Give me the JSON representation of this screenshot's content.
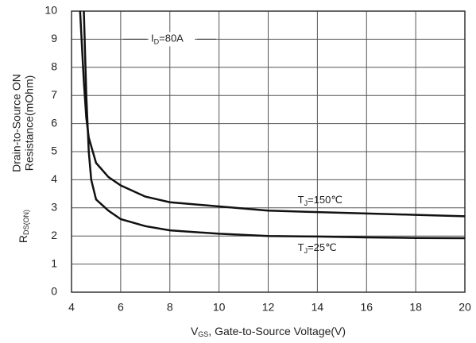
{
  "chart_data": {
    "type": "line",
    "xlabel": {
      "main": "V",
      "sub": "GS",
      "rest": ", Gate-to-Source Voltage(V)"
    },
    "ylabel": {
      "main": "R",
      "sub": "DS(ON)",
      "line1": "Drain-to-Source ON",
      "line2": "Resistance(mOhm)"
    },
    "annotation": {
      "main": "I",
      "sub": "D",
      "rest": "=80A"
    },
    "series": [
      {
        "name": {
          "main": "T",
          "sub": "J",
          "rest": "=150℃"
        },
        "color": "#111111",
        "x": [
          4.35,
          4.5,
          4.6,
          4.7,
          5,
          5.5,
          6,
          7,
          8,
          10,
          12,
          14,
          16,
          18,
          20
        ],
        "values": [
          10,
          7.5,
          6.2,
          5.5,
          4.6,
          4.1,
          3.8,
          3.4,
          3.2,
          3.05,
          2.9,
          2.85,
          2.8,
          2.75,
          2.7
        ]
      },
      {
        "name": {
          "main": "T",
          "sub": "J",
          "rest": "=25℃"
        },
        "color": "#111111",
        "x": [
          4.5,
          4.6,
          4.7,
          4.8,
          5,
          5.5,
          6,
          7,
          8,
          10,
          12,
          14,
          16,
          18,
          20
        ],
        "values": [
          10,
          7,
          5,
          4,
          3.3,
          2.9,
          2.6,
          2.35,
          2.2,
          2.08,
          2.0,
          1.98,
          1.95,
          1.93,
          1.92
        ]
      }
    ],
    "xlim": [
      4,
      20
    ],
    "xticks": [
      4,
      6,
      8,
      10,
      12,
      14,
      16,
      18,
      20
    ],
    "ylim": [
      0,
      10
    ],
    "yticks": [
      0,
      1,
      2,
      3,
      4,
      5,
      6,
      7,
      8,
      9,
      10
    ],
    "grid": true
  }
}
